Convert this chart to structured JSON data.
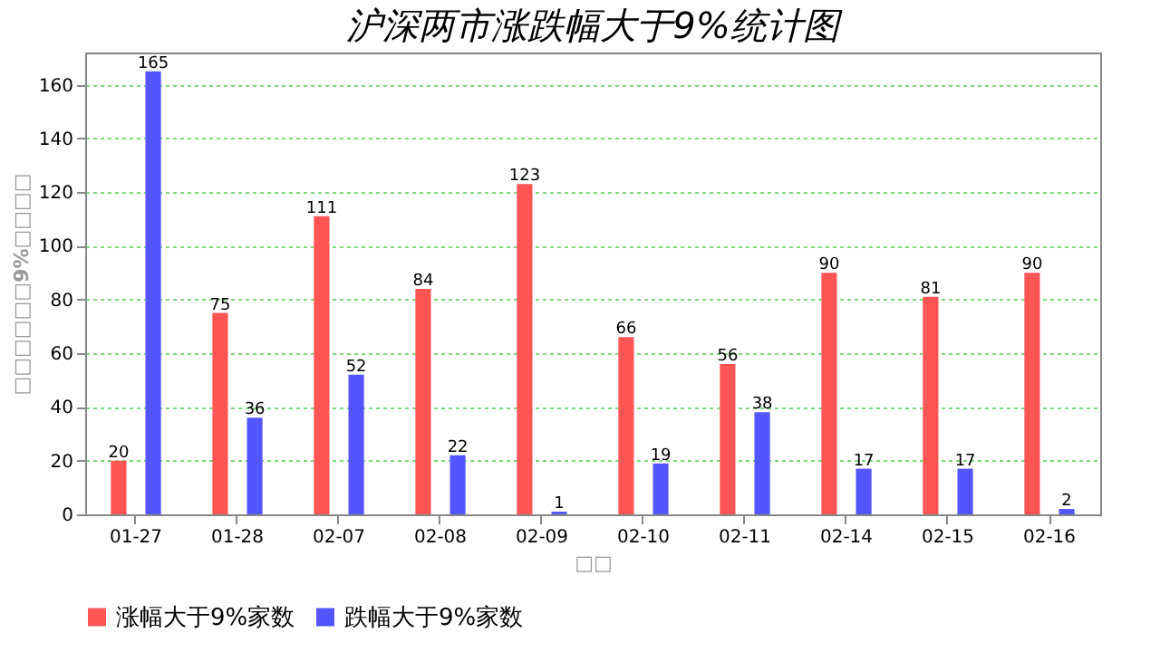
{
  "chart_data": {
    "type": "bar",
    "title": "沪深两市涨跌幅大于9%统计图",
    "xlabel": "□□",
    "ylabel": "□□□□□□9%□□□□",
    "categories": [
      "01-27",
      "01-28",
      "02-07",
      "02-08",
      "02-09",
      "02-10",
      "02-11",
      "02-14",
      "02-15",
      "02-16"
    ],
    "series": [
      {
        "name": "涨幅大于9%家数",
        "color": "#ff5555",
        "values": [
          20,
          75,
          111,
          84,
          123,
          66,
          56,
          90,
          81,
          90
        ]
      },
      {
        "name": "跌幅大于9%家数",
        "color": "#5555ff",
        "values": [
          165,
          36,
          52,
          22,
          1,
          19,
          38,
          17,
          17,
          2
        ]
      }
    ],
    "ylim": [
      0,
      172
    ],
    "yticks": [
      0,
      20,
      40,
      60,
      80,
      100,
      120,
      140,
      160
    ],
    "grid": "y",
    "legend": "bottom",
    "data_labels": true
  }
}
